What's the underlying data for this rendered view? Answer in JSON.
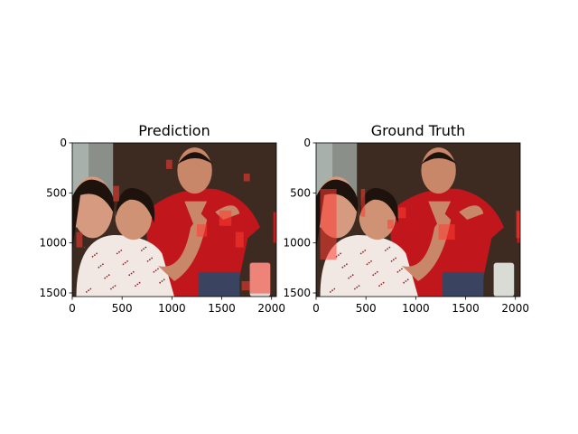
{
  "chart_data": [
    {
      "type": "image",
      "title": "Prediction",
      "xlim": [
        0,
        2048
      ],
      "ylim": [
        1536,
        0
      ],
      "xticks": [
        0,
        500,
        1000,
        1500,
        2000
      ],
      "yticks": [
        0,
        500,
        1000,
        1500
      ],
      "xtick_labels": [
        "0",
        "500",
        "1000",
        "1500",
        "2000"
      ],
      "ytick_labels": [
        "0",
        "500",
        "1000",
        "1500"
      ],
      "overlay_color": "#ff3b30"
    },
    {
      "type": "image",
      "title": "Ground Truth",
      "xlim": [
        0,
        2048
      ],
      "ylim": [
        1536,
        0
      ],
      "xticks": [
        0,
        500,
        1000,
        1500,
        2000
      ],
      "yticks": [
        0,
        500,
        1000,
        1500
      ],
      "xtick_labels": [
        "0",
        "500",
        "1000",
        "1500",
        "2000"
      ],
      "ytick_labels": [
        "0",
        "500",
        "1000",
        "1500"
      ],
      "overlay_color": "#ff3b30"
    }
  ],
  "colors": {
    "background_wall": "#3d2b22",
    "shirt_red": "#c0161c",
    "skin": "#c9876a",
    "hair": "#1e120c",
    "dress": "#f1e8e4",
    "jeans": "#3a4460",
    "glass": "#d8dcd4"
  }
}
